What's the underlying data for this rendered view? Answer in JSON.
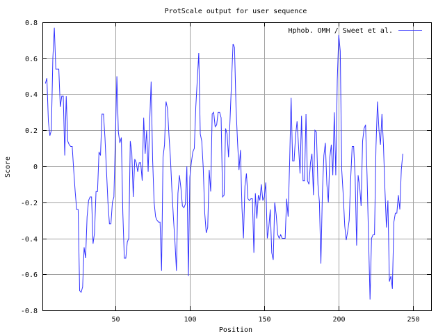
{
  "chart_data": {
    "type": "line",
    "title": "ProtScale output for user sequence",
    "xlabel": "Position",
    "ylabel": "Score",
    "xlim": [
      1,
      262
    ],
    "ylim": [
      -0.8,
      0.8
    ],
    "xticks": [
      50,
      100,
      150,
      200,
      250
    ],
    "yticks": [
      -0.8,
      -0.6,
      -0.4,
      -0.2,
      0,
      0.2,
      0.4,
      0.6,
      0.8
    ],
    "ytick_labels": [
      "-0.8",
      "-0.6",
      "-0.4",
      "-0.2",
      "0",
      "0.2",
      "0.4",
      "0.6",
      "0.8"
    ],
    "grid": true,
    "legend_position": "top-right",
    "series": [
      {
        "name": "Hphob. OMH / Sweet et al.",
        "color": "#3333ff",
        "points": [
          [
            3,
            0.46
          ],
          [
            4,
            0.49
          ],
          [
            5,
            0.25
          ],
          [
            6,
            0.17
          ],
          [
            7,
            0.2
          ],
          [
            8,
            0.6
          ],
          [
            9,
            0.77
          ],
          [
            10,
            0.54
          ],
          [
            11,
            0.54
          ],
          [
            12,
            0.54
          ],
          [
            13,
            0.33
          ],
          [
            14,
            0.39
          ],
          [
            15,
            0.39
          ],
          [
            16,
            0.06
          ],
          [
            17,
            0.39
          ],
          [
            18,
            0.14
          ],
          [
            19,
            0.12
          ],
          [
            20,
            0.11
          ],
          [
            21,
            0.11
          ],
          [
            22,
            -0.02
          ],
          [
            23,
            -0.14
          ],
          [
            24,
            -0.24
          ],
          [
            25,
            -0.24
          ],
          [
            26,
            -0.69
          ],
          [
            27,
            -0.7
          ],
          [
            28,
            -0.67
          ],
          [
            29,
            -0.45
          ],
          [
            30,
            -0.51
          ],
          [
            31,
            -0.28
          ],
          [
            32,
            -0.19
          ],
          [
            33,
            -0.17
          ],
          [
            34,
            -0.17
          ],
          [
            35,
            -0.43
          ],
          [
            36,
            -0.37
          ],
          [
            37,
            -0.14
          ],
          [
            38,
            -0.14
          ],
          [
            39,
            0.08
          ],
          [
            40,
            0.06
          ],
          [
            41,
            0.29
          ],
          [
            42,
            0.29
          ],
          [
            43,
            0.16
          ],
          [
            44,
            -0.02
          ],
          [
            45,
            -0.2
          ],
          [
            46,
            -0.32
          ],
          [
            47,
            -0.32
          ],
          [
            48,
            -0.2
          ],
          [
            49,
            -0.17
          ],
          [
            50,
            0.16
          ],
          [
            51,
            0.5
          ],
          [
            52,
            0.19
          ],
          [
            53,
            0.13
          ],
          [
            54,
            0.16
          ],
          [
            55,
            -0.26
          ],
          [
            56,
            -0.51
          ],
          [
            57,
            -0.51
          ],
          [
            58,
            -0.42
          ],
          [
            59,
            -0.4
          ],
          [
            60,
            0.14
          ],
          [
            61,
            0.08
          ],
          [
            62,
            -0.17
          ],
          [
            63,
            0.04
          ],
          [
            64,
            0.02
          ],
          [
            65,
            -0.03
          ],
          [
            66,
            0.02
          ],
          [
            67,
            0.02
          ],
          [
            68,
            -0.08
          ],
          [
            69,
            0.27
          ],
          [
            70,
            0.07
          ],
          [
            71,
            0.2
          ],
          [
            72,
            -0.03
          ],
          [
            73,
            0.24
          ],
          [
            74,
            0.47
          ],
          [
            75,
            0.04
          ],
          [
            76,
            -0.2
          ],
          [
            77,
            -0.28
          ],
          [
            78,
            -0.3
          ],
          [
            79,
            -0.31
          ],
          [
            80,
            -0.31
          ],
          [
            81,
            -0.58
          ],
          [
            82,
            0.05
          ],
          [
            83,
            0.12
          ],
          [
            84,
            0.36
          ],
          [
            85,
            0.32
          ],
          [
            86,
            0.17
          ],
          [
            87,
            0.04
          ],
          [
            88,
            -0.14
          ],
          [
            89,
            -0.29
          ],
          [
            90,
            -0.42
          ],
          [
            91,
            -0.58
          ],
          [
            92,
            -0.15
          ],
          [
            93,
            -0.05
          ],
          [
            94,
            -0.12
          ],
          [
            95,
            -0.22
          ],
          [
            96,
            -0.23
          ],
          [
            97,
            -0.21
          ],
          [
            98,
            0.0
          ],
          [
            99,
            -0.61
          ],
          [
            100,
            -0.06
          ],
          [
            101,
            0.02
          ],
          [
            102,
            0.08
          ],
          [
            103,
            0.1
          ],
          [
            104,
            0.33
          ],
          [
            105,
            0.48
          ],
          [
            106,
            0.63
          ],
          [
            107,
            0.18
          ],
          [
            108,
            0.14
          ],
          [
            109,
            -0.01
          ],
          [
            110,
            -0.26
          ],
          [
            111,
            -0.37
          ],
          [
            112,
            -0.34
          ],
          [
            113,
            -0.02
          ],
          [
            114,
            -0.14
          ],
          [
            115,
            0.29
          ],
          [
            116,
            0.3
          ],
          [
            117,
            0.22
          ],
          [
            118,
            0.23
          ],
          [
            119,
            0.3
          ],
          [
            120,
            0.3
          ],
          [
            121,
            0.27
          ],
          [
            122,
            -0.17
          ],
          [
            123,
            -0.16
          ],
          [
            124,
            0.21
          ],
          [
            125,
            0.18
          ],
          [
            126,
            0.05
          ],
          [
            127,
            0.26
          ],
          [
            128,
            0.47
          ],
          [
            129,
            0.68
          ],
          [
            130,
            0.66
          ],
          [
            131,
            0.33
          ],
          [
            132,
            0.14
          ],
          [
            133,
            -0.02
          ],
          [
            134,
            0.09
          ],
          [
            135,
            -0.23
          ],
          [
            136,
            -0.4
          ],
          [
            137,
            -0.11
          ],
          [
            138,
            -0.04
          ],
          [
            139,
            -0.18
          ],
          [
            140,
            -0.19
          ],
          [
            141,
            -0.18
          ],
          [
            142,
            -0.18
          ],
          [
            143,
            -0.48
          ],
          [
            144,
            -0.15
          ],
          [
            145,
            -0.29
          ],
          [
            146,
            -0.16
          ],
          [
            147,
            -0.19
          ],
          [
            148,
            -0.1
          ],
          [
            149,
            -0.19
          ],
          [
            150,
            -0.17
          ],
          [
            151,
            -0.09
          ],
          [
            152,
            -0.4
          ],
          [
            153,
            -0.34
          ],
          [
            154,
            -0.24
          ],
          [
            155,
            -0.48
          ],
          [
            156,
            -0.52
          ],
          [
            157,
            -0.2
          ],
          [
            158,
            -0.27
          ],
          [
            159,
            -0.38
          ],
          [
            160,
            -0.4
          ],
          [
            161,
            -0.38
          ],
          [
            162,
            -0.4
          ],
          [
            163,
            -0.4
          ],
          [
            164,
            -0.4
          ],
          [
            165,
            -0.18
          ],
          [
            166,
            -0.28
          ],
          [
            167,
            0.02
          ],
          [
            168,
            0.38
          ],
          [
            169,
            0.03
          ],
          [
            170,
            0.03
          ],
          [
            171,
            0.17
          ],
          [
            172,
            0.25
          ],
          [
            173,
            0.11
          ],
          [
            174,
            -0.04
          ],
          [
            175,
            0.28
          ],
          [
            176,
            -0.08
          ],
          [
            177,
            -0.08
          ],
          [
            178,
            0.29
          ],
          [
            179,
            -0.08
          ],
          [
            180,
            -0.1
          ],
          [
            181,
            0.02
          ],
          [
            182,
            0.07
          ],
          [
            183,
            -0.16
          ],
          [
            184,
            0.2
          ],
          [
            185,
            0.19
          ],
          [
            186,
            -0.1
          ],
          [
            187,
            -0.2
          ],
          [
            188,
            -0.54
          ],
          [
            189,
            -0.15
          ],
          [
            190,
            0.06
          ],
          [
            191,
            0.13
          ],
          [
            192,
            -0.1
          ],
          [
            193,
            -0.2
          ],
          [
            194,
            0.05
          ],
          [
            195,
            0.12
          ],
          [
            196,
            -0.05
          ],
          [
            197,
            0.3
          ],
          [
            198,
            -0.05
          ],
          [
            199,
            0.48
          ],
          [
            200,
            0.73
          ],
          [
            201,
            0.64
          ],
          [
            202,
            -0.02
          ],
          [
            203,
            -0.16
          ],
          [
            204,
            -0.33
          ],
          [
            205,
            -0.41
          ],
          [
            206,
            -0.36
          ],
          [
            207,
            -0.3
          ],
          [
            208,
            -0.07
          ],
          [
            209,
            0.11
          ],
          [
            210,
            0.11
          ],
          [
            211,
            -0.06
          ],
          [
            212,
            -0.44
          ],
          [
            213,
            -0.05
          ],
          [
            214,
            -0.11
          ],
          [
            215,
            -0.22
          ],
          [
            216,
            0.14
          ],
          [
            217,
            0.21
          ],
          [
            218,
            0.23
          ],
          [
            219,
            -0.05
          ],
          [
            220,
            -0.4
          ],
          [
            221,
            -0.74
          ],
          [
            222,
            -0.4
          ],
          [
            223,
            -0.38
          ],
          [
            224,
            -0.38
          ],
          [
            225,
            0.11
          ],
          [
            226,
            0.36
          ],
          [
            227,
            0.2
          ],
          [
            228,
            0.12
          ],
          [
            229,
            0.29
          ],
          [
            230,
            0.12
          ],
          [
            231,
            -0.13
          ],
          [
            232,
            -0.34
          ],
          [
            233,
            -0.19
          ],
          [
            234,
            -0.64
          ],
          [
            235,
            -0.61
          ],
          [
            236,
            -0.68
          ],
          [
            237,
            -0.31
          ],
          [
            238,
            -0.26
          ],
          [
            239,
            -0.26
          ],
          [
            240,
            -0.16
          ],
          [
            241,
            -0.24
          ],
          [
            242,
            -0.02
          ],
          [
            243,
            0.07
          ]
        ]
      }
    ]
  }
}
